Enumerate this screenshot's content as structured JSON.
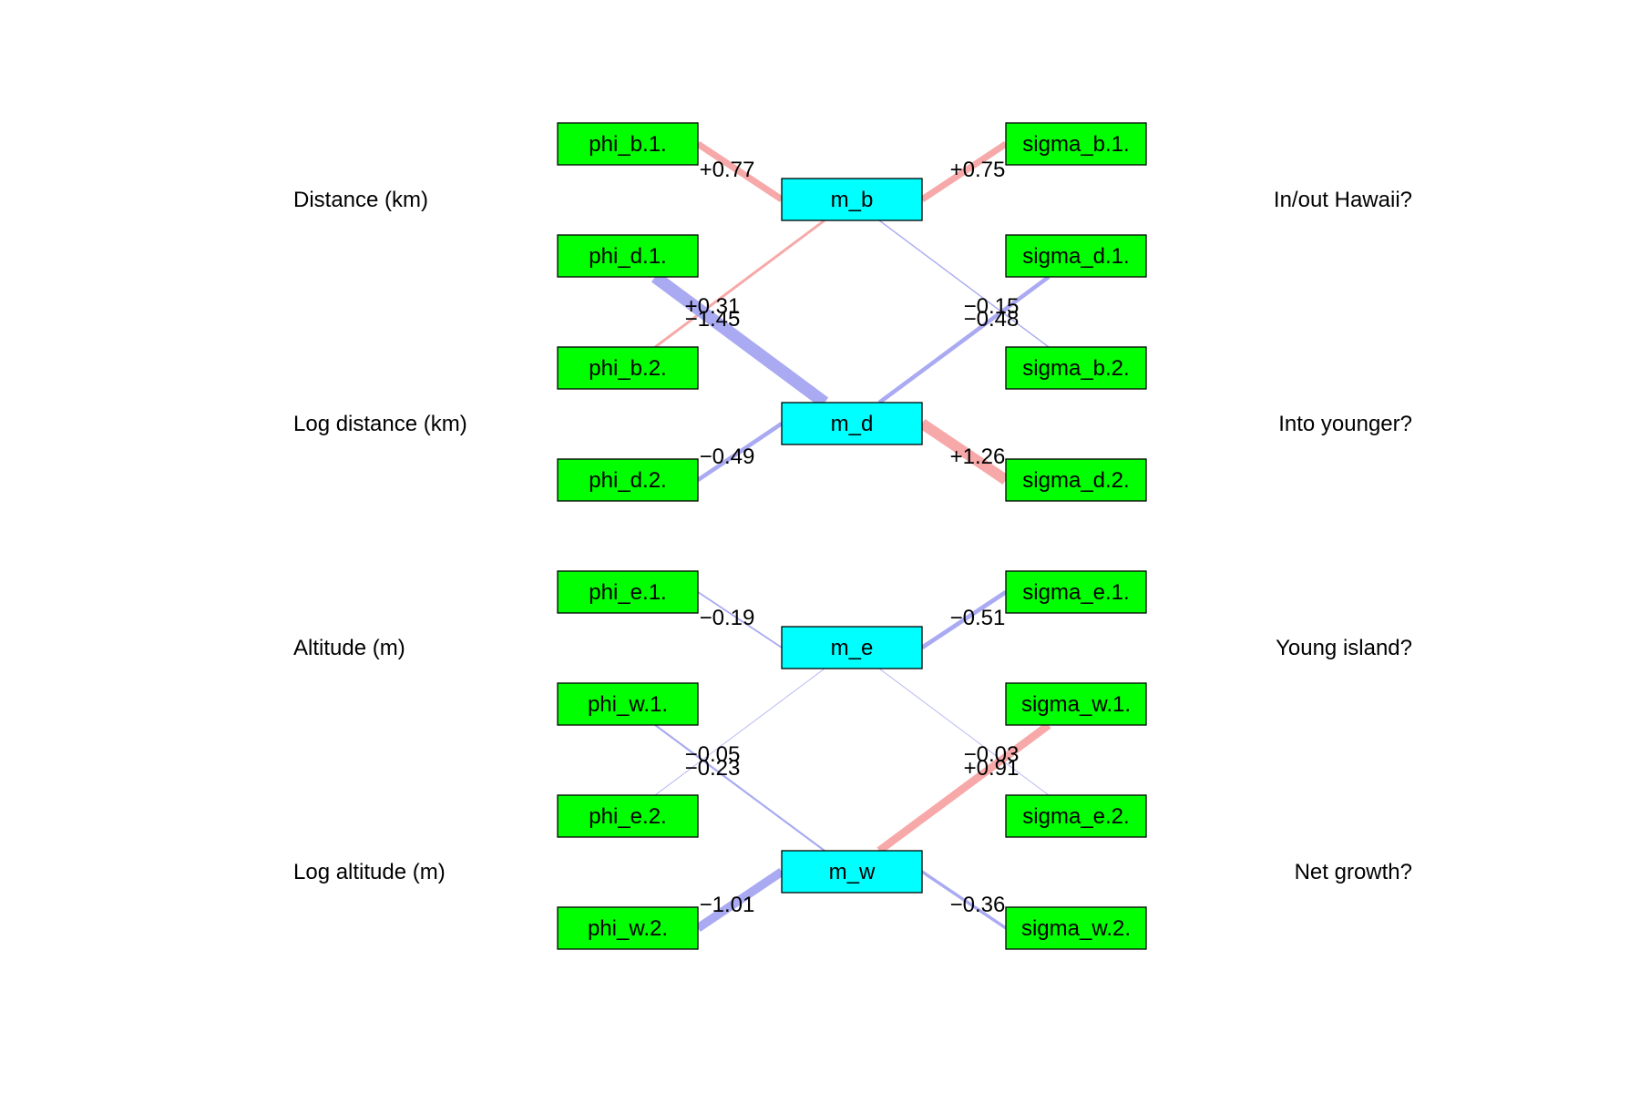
{
  "colors": {
    "positive": "#F7A8A8",
    "negative": "#AAAAF3",
    "side_node": "#00FF00",
    "center_node": "#00FFFF"
  },
  "row_labels": {
    "left": [
      "Distance (km)",
      "Log distance (km)",
      "Altitude (m)",
      "Log altitude (m)"
    ],
    "right": [
      "In/out Hawaii?",
      "Into younger?",
      "Young island?",
      "Net growth?"
    ]
  },
  "nodes": {
    "m_b": "m_b",
    "m_d": "m_d",
    "m_e": "m_e",
    "m_w": "m_w",
    "phi_b1": "phi_b.1.",
    "phi_d1": "phi_d.1.",
    "phi_b2": "phi_b.2.",
    "phi_d2": "phi_d.2.",
    "phi_e1": "phi_e.1.",
    "phi_w1": "phi_w.1.",
    "phi_e2": "phi_e.2.",
    "phi_w2": "phi_w.2.",
    "sigma_b1": "sigma_b.1.",
    "sigma_d1": "sigma_d.1.",
    "sigma_b2": "sigma_b.2.",
    "sigma_d2": "sigma_d.2.",
    "sigma_e1": "sigma_e.1.",
    "sigma_w1": "sigma_w.1.",
    "sigma_e2": "sigma_e.2.",
    "sigma_w2": "sigma_w.2."
  },
  "edges": [
    {
      "from": "phi_b1",
      "to": "m_b",
      "weight": 0.77,
      "label": "+0.77"
    },
    {
      "from": "phi_b2",
      "to": "m_b",
      "weight": 0.31,
      "label": "+0.31"
    },
    {
      "from": "phi_d1",
      "to": "m_d",
      "weight": -1.45,
      "label": "−1.45"
    },
    {
      "from": "phi_d2",
      "to": "m_d",
      "weight": -0.49,
      "label": "−0.49"
    },
    {
      "from": "sigma_b1",
      "to": "m_b",
      "weight": 0.75,
      "label": "+0.75"
    },
    {
      "from": "sigma_b2",
      "to": "m_b",
      "weight": -0.15,
      "label": "−0.15"
    },
    {
      "from": "sigma_d1",
      "to": "m_d",
      "weight": -0.48,
      "label": "−0.48"
    },
    {
      "from": "sigma_d2",
      "to": "m_d",
      "weight": 1.26,
      "label": "+1.26"
    },
    {
      "from": "phi_e1",
      "to": "m_e",
      "weight": -0.19,
      "label": "−0.19"
    },
    {
      "from": "phi_e2",
      "to": "m_e",
      "weight": -0.05,
      "label": "−0.05"
    },
    {
      "from": "phi_w1",
      "to": "m_w",
      "weight": -0.23,
      "label": "−0.23"
    },
    {
      "from": "phi_w2",
      "to": "m_w",
      "weight": -1.01,
      "label": "−1.01"
    },
    {
      "from": "sigma_e1",
      "to": "m_e",
      "weight": -0.51,
      "label": "−0.51"
    },
    {
      "from": "sigma_e2",
      "to": "m_e",
      "weight": -0.03,
      "label": "−0.03"
    },
    {
      "from": "sigma_w1",
      "to": "m_w",
      "weight": 0.91,
      "label": "+0.91"
    },
    {
      "from": "sigma_w2",
      "to": "m_w",
      "weight": -0.36,
      "label": "−0.36"
    }
  ]
}
